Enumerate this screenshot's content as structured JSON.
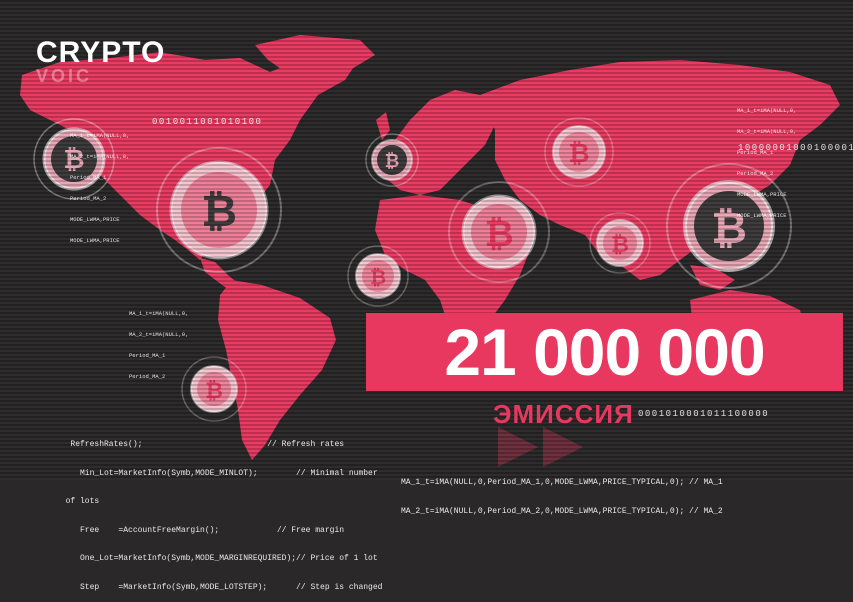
{
  "logo": {
    "title": "CRYPTO",
    "subtitle": "VOIC"
  },
  "headline": {
    "amount": "21 000 000",
    "label": "ЭМИССИЯ"
  },
  "binary": {
    "top_left": "0010011001010100",
    "top_right": "10000001000100001",
    "bottom_right": "0001010001011100000"
  },
  "code_top_left": [
    "MA_1_t=iMA(NULL,0,",
    "MA_2_t=iMA(NULL,0,",
    "Period_MA_1",
    "Period_MA_2",
    "MODE_LWMA,PRICE",
    "MODE_LWMA,PRICE"
  ],
  "code_top_right": [
    "MA_1_t=iMA(NULL,0,",
    "MA_2_t=iMA(NULL,0,",
    "Period_MA_1",
    "Period_MA_2",
    "MODE_LWMA,PRICE",
    "MODE_LWMA,PRICE"
  ],
  "code_middle": [
    "MA_1_t=iMA(NULL,0,",
    "MA_2_t=iMA(NULL,0,",
    "Period_MA_1",
    "Period_MA_2"
  ],
  "code_bottom_left": [
    "   RefreshRates();                          // Refresh rates",
    "     Min_Lot=MarketInfo(Symb,MODE_MINLOT);        // Minimal number",
    "  of lots",
    "     Free    =AccountFreeMargin();            // Free margin",
    "     One_Lot=MarketInfo(Symb,MODE_MARGINREQUIRED);// Price of 1 lot",
    "     Step    =MarketInfo(Symb,MODE_LOTSTEP);      // Step is changed"
  ],
  "code_bottom_right": [
    "MA_1_t=iMA(NULL,0,Period_MA_1,0,MODE_LWMA,PRICE_TYPICAL,0); // MA_1",
    "MA_2_t=iMA(NULL,0,Period_MA_2,0,MODE_LWMA,PRICE_TYPICAL,0); // MA_2"
  ],
  "colors": {
    "accent": "#e8385f",
    "background": "#2a2829",
    "coin": "#3a3839",
    "coin_light": "#f3c2cd"
  }
}
